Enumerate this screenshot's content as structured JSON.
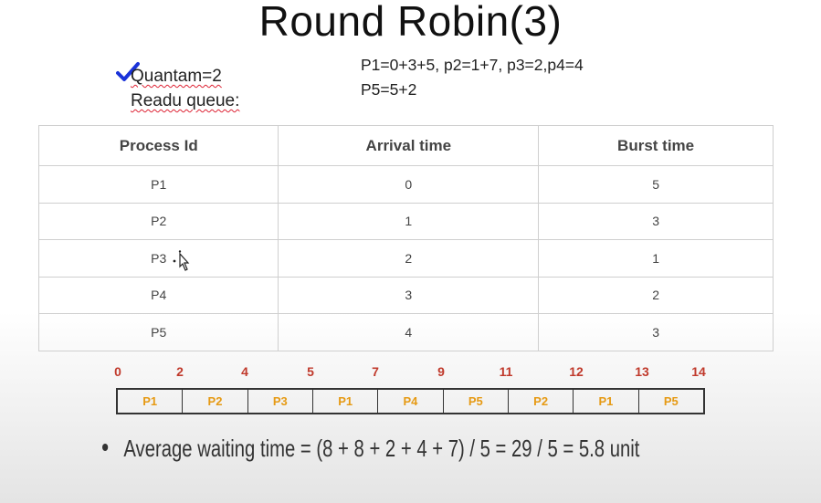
{
  "slide": {
    "title": "Round Robin(3)",
    "note_left": {
      "line1": "Quantam=2",
      "line2": "Readu queue:"
    },
    "note_right": {
      "line1": "P1=0+3+5, p2=1+7, p3=2,p4=4",
      "line2": "P5=5+2"
    },
    "check_icon_color": "#1a33d9"
  },
  "table": {
    "headers": [
      "Process Id",
      "Arrival time",
      "Burst time"
    ],
    "rows": [
      [
        "P1",
        "0",
        "5"
      ],
      [
        "P2",
        "1",
        "3"
      ],
      [
        "P3",
        "2",
        "1"
      ],
      [
        "P4",
        "3",
        "2"
      ],
      [
        "P5",
        "4",
        "3"
      ]
    ]
  },
  "gantt": {
    "ticks": [
      "0",
      "2",
      "4",
      "5",
      "7",
      "9",
      "11",
      "12",
      "13",
      "14"
    ],
    "blocks": [
      "P1",
      "P2",
      "P3",
      "P1",
      "P4",
      "P5",
      "P2",
      "P1",
      "P5"
    ],
    "tick_color": "#c0392b",
    "block_color": "#e69a14"
  },
  "summary": {
    "avg_waiting": "Average waiting time = (8 + 8 + 2 + 4 + 7) / 5 = 29 / 5 = 5.8 unit"
  }
}
